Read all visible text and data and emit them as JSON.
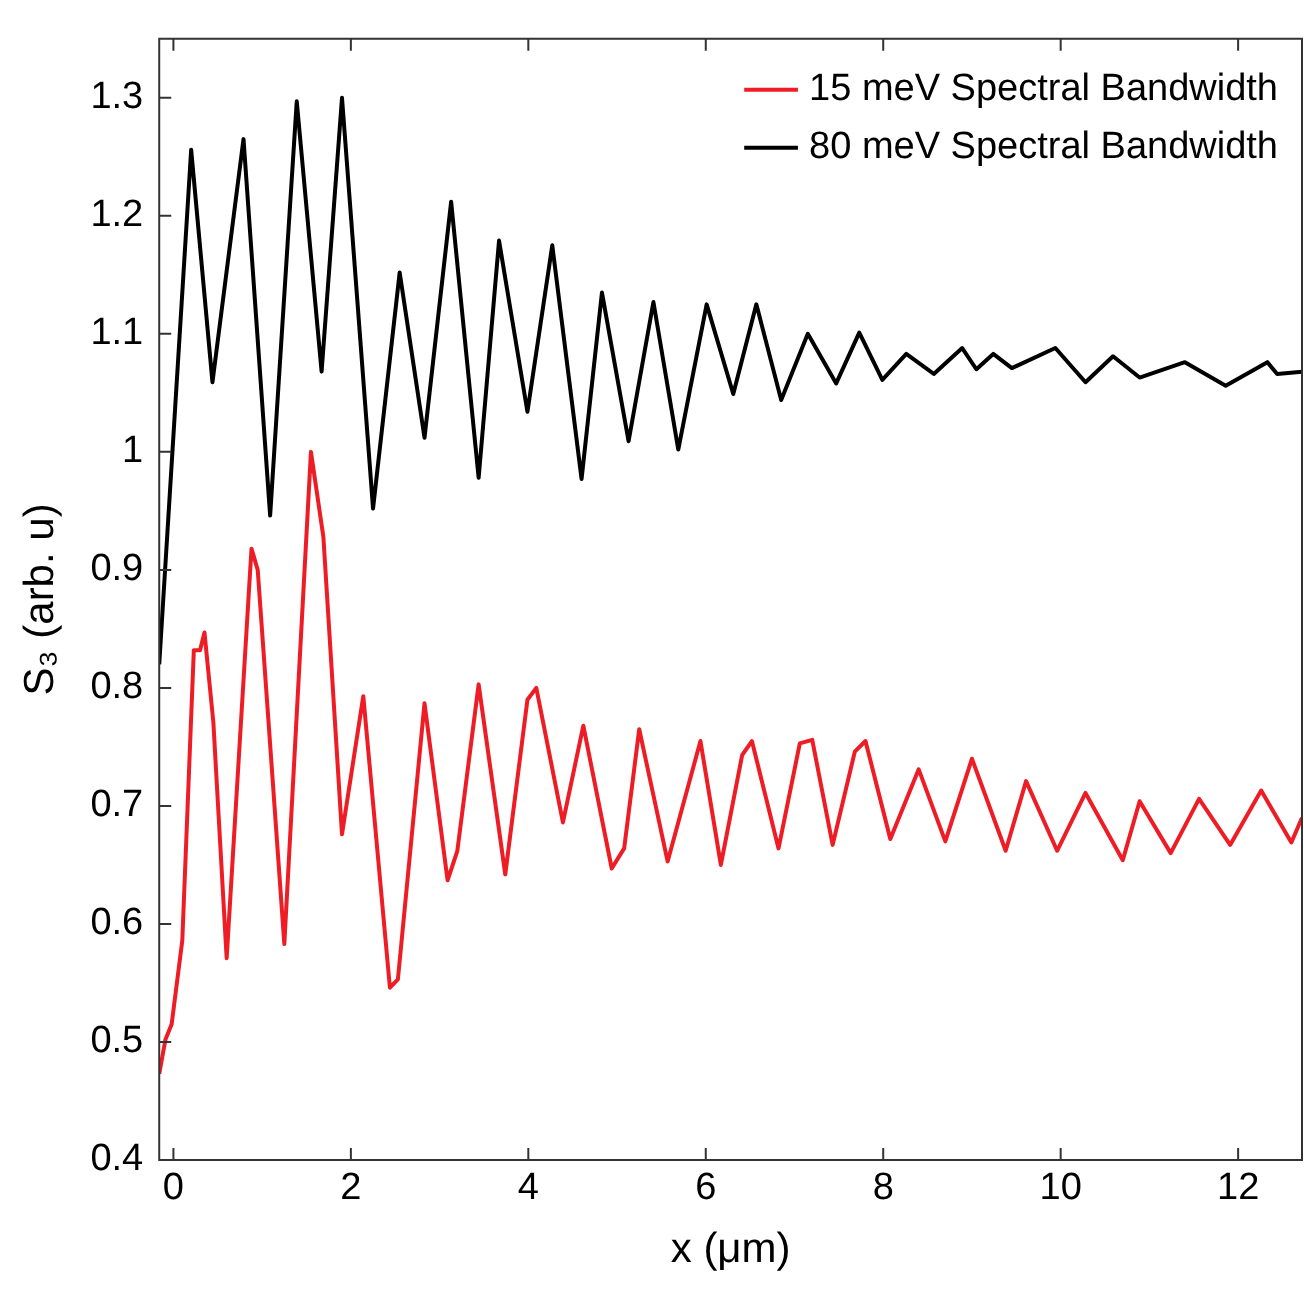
{
  "chart_data": {
    "type": "line",
    "xlabel": "x (μm)",
    "ylabel": "S₃ (arb. u)",
    "xlim": [
      -0.16,
      12.72
    ],
    "ylim": [
      0.4,
      1.35
    ],
    "xticks": [
      0,
      2,
      4,
      6,
      8,
      10,
      12
    ],
    "yticks": [
      0.4,
      0.5,
      0.6,
      0.7,
      0.8,
      0.9,
      1,
      1.1,
      1.2,
      1.3
    ],
    "grid": false,
    "legend": "top right",
    "marker": "none",
    "line_style": "solid",
    "series": [
      {
        "name": "15 meV Spectral Bandwidth",
        "color": "#ee1c24",
        "x": [
          -0.16,
          -0.09,
          -0.02,
          0.1,
          0.23,
          0.3,
          0.35,
          0.45,
          0.6,
          0.88,
          0.95,
          1.25,
          1.55,
          1.69,
          1.9,
          2.14,
          2.44,
          2.53,
          2.83,
          3.09,
          3.2,
          3.44,
          3.74,
          3.99,
          4.09,
          4.39,
          4.62,
          4.94,
          5.08,
          5.25,
          5.57,
          5.94,
          6.17,
          6.41,
          6.52,
          6.82,
          7.06,
          7.2,
          7.43,
          7.68,
          7.8,
          8.08,
          8.4,
          8.7,
          9.0,
          9.38,
          9.61,
          9.96,
          10.28,
          10.7,
          10.89,
          11.24,
          11.56,
          11.91,
          12.26,
          12.6,
          12.72
        ],
        "values": [
          0.473,
          0.502,
          0.515,
          0.586,
          0.832,
          0.832,
          0.847,
          0.771,
          0.571,
          0.918,
          0.9,
          0.583,
          1.0,
          0.928,
          0.676,
          0.793,
          0.546,
          0.553,
          0.787,
          0.637,
          0.662,
          0.803,
          0.642,
          0.79,
          0.8,
          0.686,
          0.768,
          0.647,
          0.664,
          0.765,
          0.653,
          0.755,
          0.65,
          0.743,
          0.755,
          0.664,
          0.753,
          0.756,
          0.667,
          0.746,
          0.755,
          0.672,
          0.731,
          0.67,
          0.74,
          0.662,
          0.721,
          0.662,
          0.711,
          0.654,
          0.704,
          0.66,
          0.706,
          0.667,
          0.713,
          0.669,
          0.69
        ]
      },
      {
        "name": "80 meV Spectral Bandwidth",
        "color": "#000000",
        "x": [
          -0.16,
          0.2,
          0.44,
          0.79,
          1.09,
          1.39,
          1.67,
          1.9,
          2.25,
          2.55,
          2.83,
          3.13,
          3.44,
          3.67,
          3.99,
          4.27,
          4.6,
          4.83,
          5.13,
          5.41,
          5.69,
          6.01,
          6.31,
          6.57,
          6.85,
          7.15,
          7.47,
          7.73,
          7.99,
          8.26,
          8.57,
          8.89,
          9.05,
          9.24,
          9.45,
          9.94,
          10.28,
          10.59,
          10.89,
          11.4,
          11.86,
          12.33,
          12.44,
          12.72
        ],
        "values": [
          0.82,
          1.256,
          1.059,
          1.265,
          0.946,
          1.297,
          1.068,
          1.3,
          0.952,
          1.152,
          1.012,
          1.212,
          0.978,
          1.179,
          1.034,
          1.175,
          0.977,
          1.135,
          1.009,
          1.127,
          1.002,
          1.125,
          1.049,
          1.125,
          1.044,
          1.1,
          1.058,
          1.101,
          1.061,
          1.083,
          1.066,
          1.088,
          1.07,
          1.083,
          1.071,
          1.088,
          1.059,
          1.081,
          1.063,
          1.076,
          1.056,
          1.076,
          1.066,
          1.068
        ]
      }
    ]
  }
}
